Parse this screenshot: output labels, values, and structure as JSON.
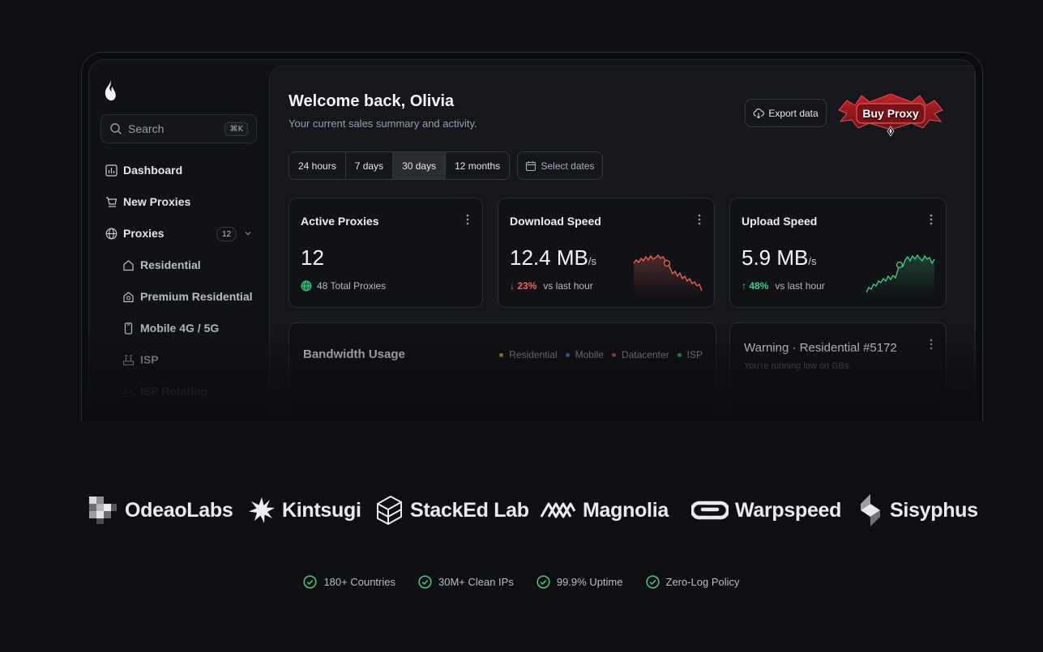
{
  "sidebar": {
    "search_placeholder": "Search",
    "shortcut": "⌘K",
    "items": [
      {
        "label": "Dashboard",
        "icon": "bar-chart-icon"
      },
      {
        "label": "New Proxies",
        "icon": "cart-icon"
      },
      {
        "label": "Proxies",
        "icon": "globe-icon",
        "badge": "12"
      },
      {
        "label": "Residential",
        "icon": "home-icon"
      },
      {
        "label": "Premium Residential",
        "icon": "premium-home-icon"
      },
      {
        "label": "Mobile 4G / 5G",
        "icon": "mobile-icon"
      },
      {
        "label": "ISP",
        "icon": "isp-icon"
      },
      {
        "label": "ISP Rotating",
        "icon": "isp-rotating-icon"
      }
    ]
  },
  "header": {
    "title": "Welcome back, Olivia",
    "subtitle": "Your current sales summary and activity.",
    "export_label": "Export data",
    "buy_label": "Buy Proxy"
  },
  "ranges": {
    "options": [
      "24 hours",
      "7 days",
      "30 days",
      "12 months"
    ],
    "active": "30 days",
    "select_dates": "Select dates"
  },
  "cards": {
    "active": {
      "title": "Active Proxies",
      "value": "12",
      "meta": "48 Total Proxies"
    },
    "download": {
      "title": "Download Speed",
      "value": "12.4 MB",
      "unit": "/s",
      "change": "23%",
      "meta": "vs last hour"
    },
    "upload": {
      "title": "Upload Speed",
      "value": "5.9 MB",
      "unit": "/s",
      "change": "48%",
      "meta": "vs last hour"
    },
    "bandwidth": {
      "title": "Bandwidth Usage",
      "legend": [
        {
          "name": "Residential",
          "color": "#e2a12b"
        },
        {
          "name": "Mobile",
          "color": "#2f8fd8"
        },
        {
          "name": "Datacenter",
          "color": "#e0504a"
        },
        {
          "name": "ISP",
          "color": "#2fbf6e"
        }
      ]
    },
    "warning": {
      "title": "Warning · Residential #5172",
      "subtitle": "You're running low on GBs."
    }
  },
  "colors": {
    "down": "#f0645a",
    "up": "#3fd089"
  },
  "logos": [
    "OdeaoLabs",
    "Kintsugi",
    "StackEd Lab",
    "Magnolia",
    "Warpspeed",
    "Sisyphus"
  ],
  "features": [
    "180+ Countries",
    "30M+ Clean IPs",
    "99.9% Uptime",
    "Zero-Log Policy"
  ]
}
